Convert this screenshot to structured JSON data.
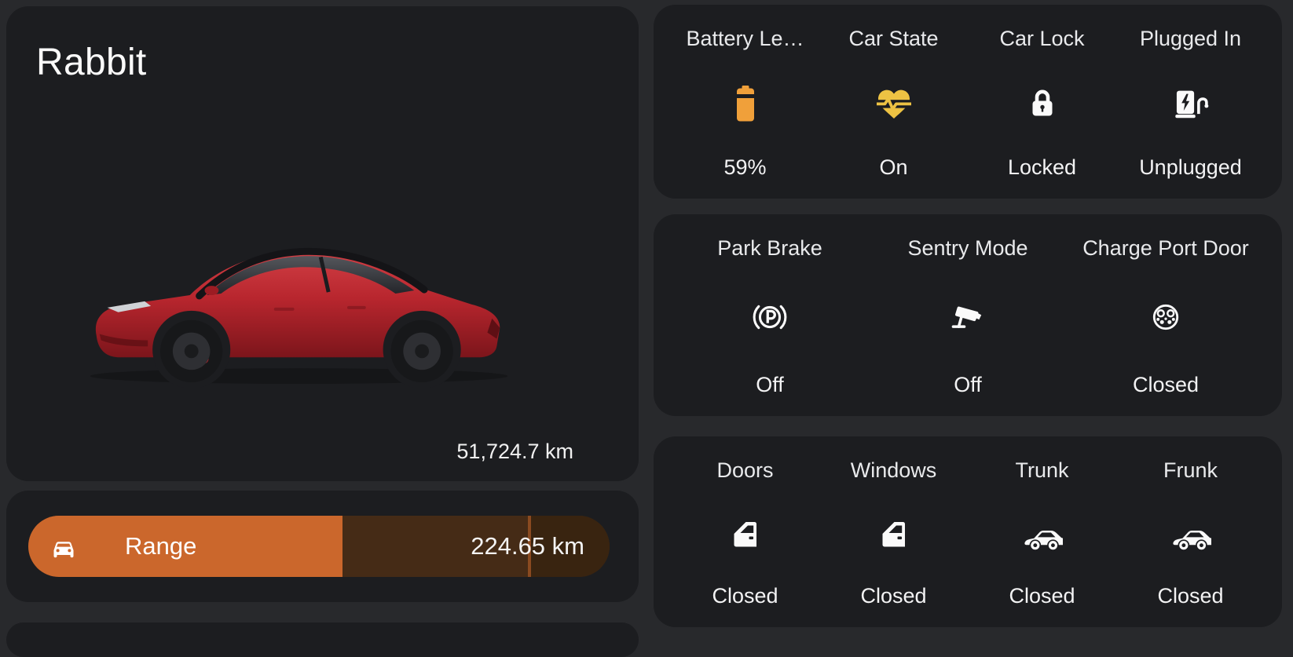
{
  "theme": {
    "page_bg": "#28292c",
    "card_bg": "#1c1d20",
    "text": "#ececec",
    "icon_color": "#fafafa",
    "battery_color": "#f0a03a",
    "heart_color": "#edc243",
    "bar_fill": "#cb672c",
    "bar_track": "#452b16",
    "bar_track_dim": "#392410",
    "bar_marker": "#8a4a20",
    "car_red": "#b8262e"
  },
  "vehicle_card": {
    "title": "Rabbit",
    "odometer": "51,724.7 km",
    "image": "red-tesla-model-3-side-view"
  },
  "range_card": {
    "label": "Range",
    "value": "224.65 km",
    "fill_percent": 54,
    "marker_percent": 86
  },
  "status_cards": [
    {
      "items": [
        {
          "label": "Battery Le…",
          "value": "59%",
          "icon": "battery-icon"
        },
        {
          "label": "Car State",
          "value": "On",
          "icon": "heart-pulse-icon"
        },
        {
          "label": "Car Lock",
          "value": "Locked",
          "icon": "lock-icon"
        },
        {
          "label": "Plugged In",
          "value": "Unplugged",
          "icon": "ev-station-icon"
        }
      ]
    },
    {
      "items": [
        {
          "label": "Park Brake",
          "value": "Off",
          "icon": "park-brake-icon"
        },
        {
          "label": "Sentry Mode",
          "value": "Off",
          "icon": "cctv-icon"
        },
        {
          "label": "Charge Port Door",
          "value": "Closed",
          "icon": "charge-port-icon"
        }
      ]
    },
    {
      "items": [
        {
          "label": "Doors",
          "value": "Closed",
          "icon": "car-door-icon"
        },
        {
          "label": "Windows",
          "value": "Closed",
          "icon": "car-door-icon"
        },
        {
          "label": "Trunk",
          "value": "Closed",
          "icon": "car-side-icon"
        },
        {
          "label": "Frunk",
          "value": "Closed",
          "icon": "car-side-icon"
        }
      ]
    }
  ]
}
